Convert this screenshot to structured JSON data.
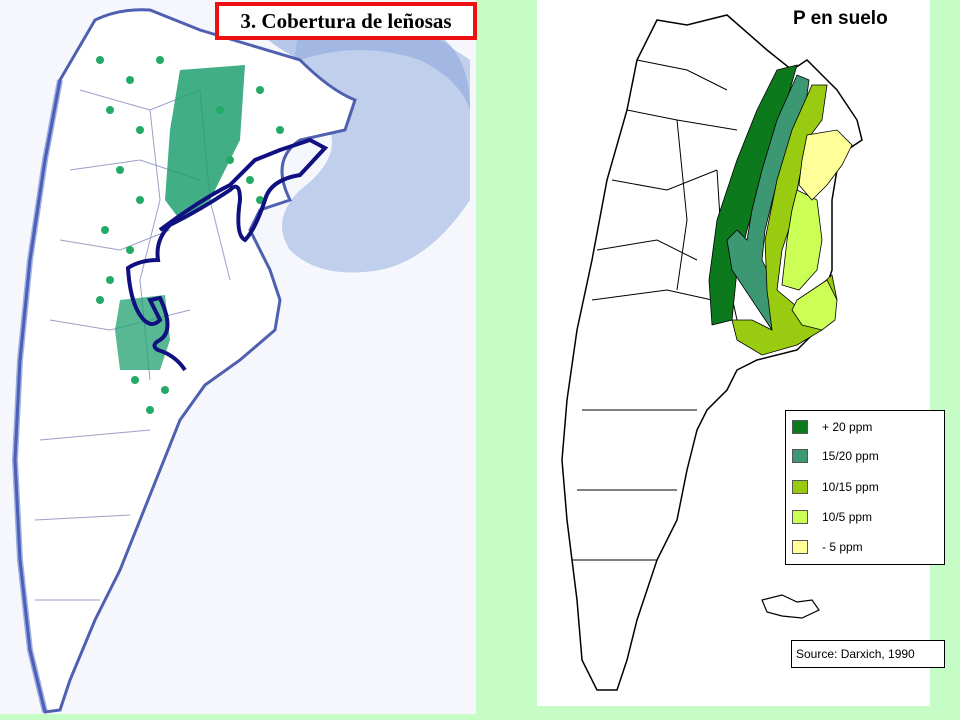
{
  "left_map": {
    "title": "3. Cobertura de leñosas"
  },
  "right_map": {
    "title": "P en suelo",
    "legend": [
      {
        "label": "+ 20 ppm",
        "color": "#0c7a1c"
      },
      {
        "label": "15/20 ppm",
        "color": "#3c9872"
      },
      {
        "label": "10/15 ppm",
        "color": "#99cc11"
      },
      {
        "label": "10/5 ppm",
        "color": "#ccff55"
      },
      {
        "label": "- 5 ppm",
        "color": "#ffff99"
      }
    ],
    "source": "Source: Darxich, 1990"
  },
  "colors": {
    "background": "#c6fcc6",
    "title_border": "#ee1111",
    "tree_dots": "#22aa66",
    "boundary_line": "#101080",
    "sea_texture": "#5d7bbf"
  }
}
